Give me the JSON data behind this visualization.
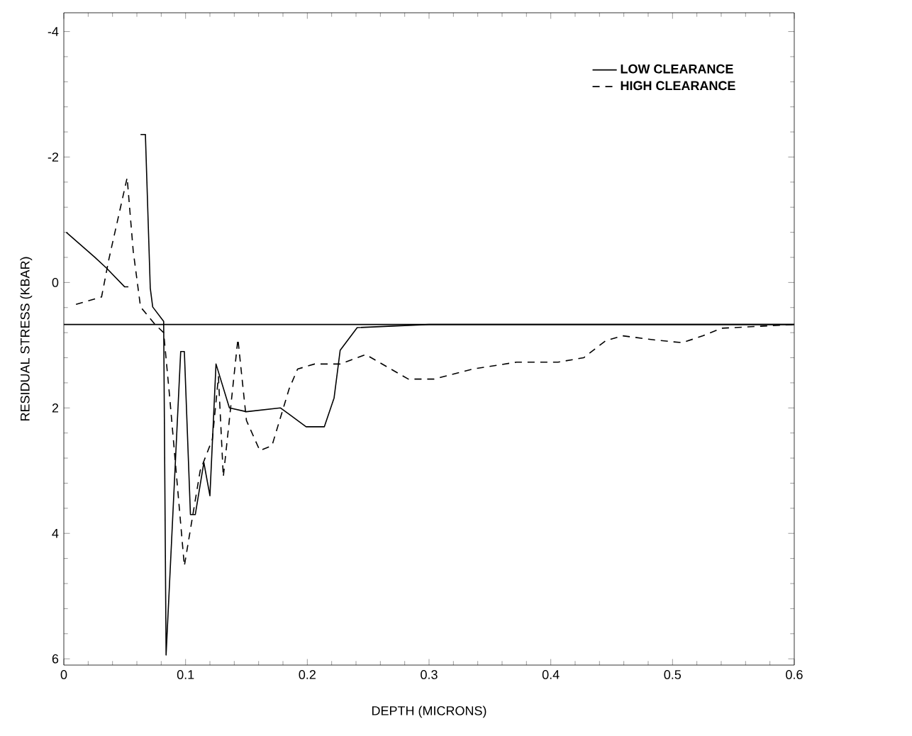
{
  "chart_data": {
    "type": "line",
    "xlabel": "DEPTH (MICRONS)",
    "ylabel": "RESIDUAL STRESS (KBAR)",
    "xlim": [
      0,
      0.6
    ],
    "ylim": [
      6.1,
      -4.3
    ],
    "xticks": [
      0,
      0.1,
      0.2,
      0.3,
      0.4,
      0.5,
      0.6
    ],
    "yticks": [
      -4,
      -2,
      0,
      2,
      4,
      6
    ],
    "legend": "top right",
    "grid": false,
    "ref_lines": [
      {
        "axis": "y",
        "value": 0.67,
        "color": "#000000"
      }
    ],
    "series": [
      {
        "name": "LOW   CLEARANCE",
        "color": "#000000",
        "line_style": "solid",
        "x": [
          0.002,
          0.025,
          0.035,
          0.05,
          0.053,
          0.056,
          0.06,
          0.063,
          0.067,
          0.071,
          0.073,
          0.082,
          0.084,
          0.096,
          0.099,
          0.104,
          0.108,
          0.115,
          0.12,
          0.125,
          0.136,
          0.15,
          0.178,
          0.185,
          0.199,
          0.214,
          0.222,
          0.227,
          0.241,
          0.3,
          0.6
        ],
        "values": [
          -0.8,
          -0.41,
          -0.23,
          0.07,
          0.07,
          null,
          null,
          -2.36,
          -2.36,
          0.09,
          0.39,
          0.62,
          5.94,
          1.1,
          1.1,
          3.7,
          3.7,
          2.87,
          3.4,
          1.3,
          2.0,
          2.06,
          2.0,
          2.1,
          2.3,
          2.3,
          1.84,
          1.08,
          0.72,
          0.67,
          0.67
        ]
      },
      {
        "name": "HIGH CLEARANCE",
        "color": "#000000",
        "line_style": "dashed",
        "x": [
          0.01,
          0.031,
          0.037,
          0.052,
          0.057,
          0.063,
          0.075,
          0.082,
          0.087,
          0.099,
          0.112,
          0.122,
          0.127,
          0.131,
          0.143,
          0.15,
          0.161,
          0.171,
          0.185,
          0.192,
          0.206,
          0.227,
          0.248,
          0.283,
          0.304,
          0.336,
          0.372,
          0.406,
          0.427,
          0.445,
          0.459,
          0.487,
          0.508,
          0.525,
          0.54,
          0.6
        ],
        "values": [
          0.35,
          0.23,
          -0.37,
          -1.67,
          -0.5,
          0.39,
          0.67,
          0.8,
          1.84,
          4.52,
          3.0,
          2.5,
          1.5,
          3.1,
          0.9,
          2.2,
          2.68,
          2.6,
          1.7,
          1.38,
          1.3,
          1.3,
          1.15,
          1.54,
          1.54,
          1.38,
          1.27,
          1.27,
          1.2,
          0.93,
          0.85,
          0.92,
          0.96,
          0.85,
          0.73,
          0.67
        ]
      }
    ]
  }
}
